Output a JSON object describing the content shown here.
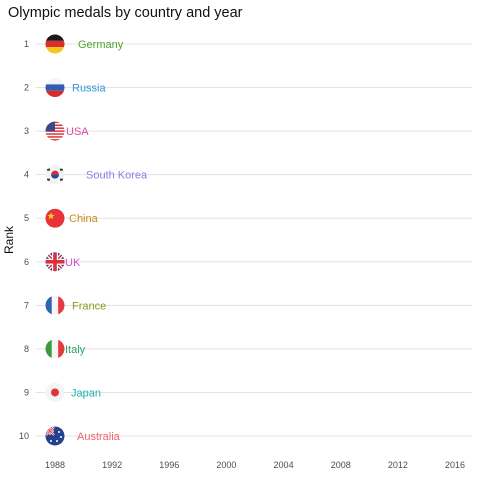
{
  "chart_data": {
    "type": "scatter",
    "title": "Olympic medals by country and year",
    "xlabel": "",
    "ylabel": "Rank",
    "x_ticks": [
      1988,
      1992,
      1996,
      2000,
      2004,
      2008,
      2012,
      2016
    ],
    "xlim": [
      1988,
      2016
    ],
    "y_ticks": [
      1,
      2,
      3,
      4,
      5,
      6,
      7,
      8,
      9,
      10
    ],
    "ylim": [
      1,
      10
    ],
    "y_reversed": true,
    "grid": true,
    "series": [
      {
        "rank": 1,
        "country": "Germany",
        "year": 1988,
        "color": "#4aa830",
        "flag": "germany-flag-icon"
      },
      {
        "rank": 2,
        "country": "Russia",
        "year": 1988,
        "color": "#2b9ad6",
        "flag": "russia-flag-icon"
      },
      {
        "rank": 3,
        "country": "USA",
        "year": 1988,
        "color": "#e0479e",
        "flag": "usa-flag-icon"
      },
      {
        "rank": 4,
        "country": "South Korea",
        "year": 1988,
        "color": "#8f7de6",
        "flag": "south-korea-flag-icon"
      },
      {
        "rank": 5,
        "country": "China",
        "year": 1988,
        "color": "#c9891b",
        "flag": "china-flag-icon"
      },
      {
        "rank": 6,
        "country": "UK",
        "year": 1988,
        "color": "#d148d6",
        "flag": "uk-flag-icon"
      },
      {
        "rank": 7,
        "country": "France",
        "year": 1988,
        "color": "#8f9a1e",
        "flag": "france-flag-icon"
      },
      {
        "rank": 8,
        "country": "Italy",
        "year": 1988,
        "color": "#2ca866",
        "flag": "italy-flag-icon"
      },
      {
        "rank": 9,
        "country": "Japan",
        "year": 1988,
        "color": "#1fb0b0",
        "flag": "japan-flag-icon"
      },
      {
        "rank": 10,
        "country": "Australia",
        "year": 1988,
        "color": "#f2666b",
        "flag": "australia-flag-icon"
      }
    ]
  }
}
